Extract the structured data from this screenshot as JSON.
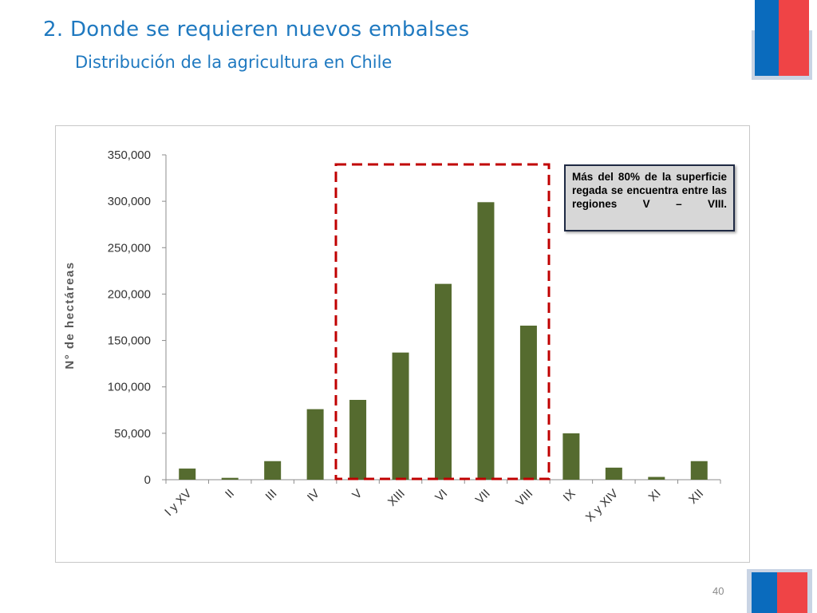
{
  "slide": {
    "title": "2. Donde se requieren nuevos embalses",
    "subtitle": "Distribución de la agricultura en Chile",
    "page_number": "40",
    "callout": "Más del 80% de la superficie regada se encuentra entre las regiones  V – VIII."
  },
  "colors": {
    "bar": "#556b2f",
    "title": "#1f79c0",
    "highlight": "#c00000",
    "flag_blue": "#0a6bbd",
    "flag_red": "#ef4446"
  },
  "chart_data": {
    "type": "bar",
    "title": "",
    "xlabel": "",
    "ylabel": "N° de hectáreas",
    "categories": [
      "I y XV",
      "II",
      "III",
      "IV",
      "V",
      "XIII",
      "VI",
      "VII",
      "VIII",
      "IX",
      "X y XIV",
      "XI",
      "XII"
    ],
    "values": [
      12000,
      2000,
      20000,
      76000,
      86000,
      137000,
      211000,
      299000,
      166000,
      50000,
      13000,
      3000,
      20000
    ],
    "ylim": [
      0,
      350000
    ],
    "yticks": [
      0,
      50000,
      100000,
      150000,
      200000,
      250000,
      300000,
      350000
    ],
    "ytick_labels": [
      "0",
      "50,000",
      "100,000",
      "150,000",
      "200,000",
      "250,000",
      "300,000",
      "350,000"
    ],
    "grid": false,
    "legend": "none",
    "highlight_range": [
      "V",
      "VIII"
    ]
  }
}
